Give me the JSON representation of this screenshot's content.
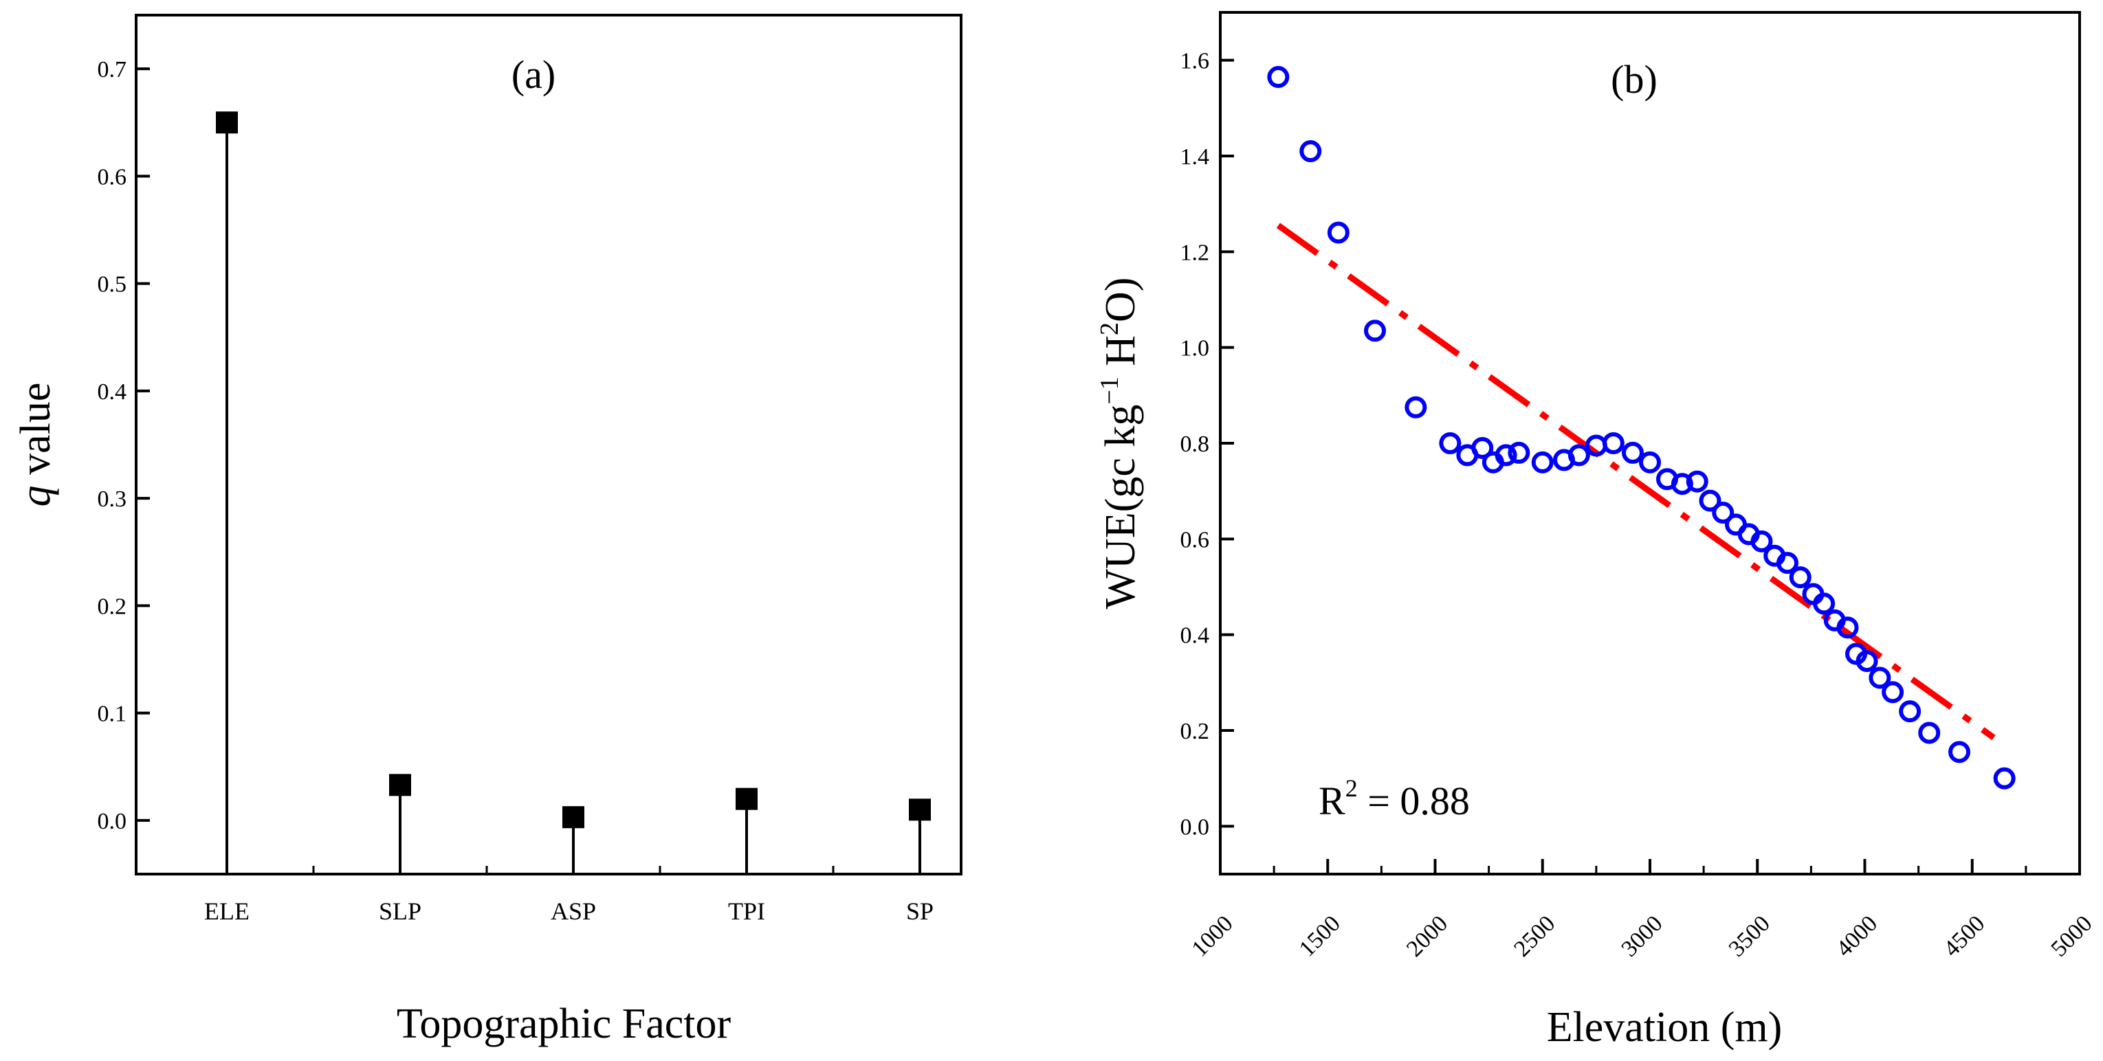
{
  "colors": {
    "marker_a": "#000000",
    "marker_b": "#0000ff",
    "fit_line": "#ff0000",
    "axis": "#000000",
    "background": "#ffffff"
  },
  "chart_data": [
    {
      "type": "stem",
      "panel_label": "(a)",
      "categories": [
        "ELE",
        "SLP",
        "ASP",
        "TPI",
        "SP"
      ],
      "values": [
        0.65,
        0.033,
        0.003,
        0.02,
        0.01
      ],
      "xlabel": "Topographic Factor",
      "ylabel_italic": "q",
      "ylabel_rest": " value",
      "ylim": [
        -0.05,
        0.75
      ],
      "yticks": [
        0.0,
        0.1,
        0.2,
        0.3,
        0.4,
        0.5,
        0.6,
        0.7
      ],
      "ytick_labels": [
        "0.0",
        "0.1",
        "0.2",
        "0.3",
        "0.4",
        "0.5",
        "0.6",
        "0.7"
      ],
      "marker": "square",
      "grid": false
    },
    {
      "type": "scatter",
      "panel_label": "(b)",
      "x": [
        1270,
        1420,
        1550,
        1720,
        1910,
        2070,
        2150,
        2220,
        2270,
        2330,
        2390,
        2500,
        2600,
        2670,
        2750,
        2830,
        2920,
        3000,
        3080,
        3150,
        3220,
        3280,
        3340,
        3400,
        3460,
        3520,
        3580,
        3640,
        3700,
        3760,
        3810,
        3860,
        3920,
        3960,
        4010,
        4070,
        4130,
        4210,
        4300,
        4440,
        4650
      ],
      "y": [
        1.565,
        1.41,
        1.24,
        1.035,
        0.875,
        0.8,
        0.775,
        0.79,
        0.76,
        0.775,
        0.78,
        0.76,
        0.765,
        0.775,
        0.795,
        0.8,
        0.78,
        0.76,
        0.725,
        0.715,
        0.72,
        0.68,
        0.655,
        0.63,
        0.61,
        0.595,
        0.565,
        0.55,
        0.52,
        0.485,
        0.465,
        0.43,
        0.415,
        0.36,
        0.345,
        0.31,
        0.28,
        0.24,
        0.195,
        0.155,
        0.1
      ],
      "marker": "open-circle",
      "fit": {
        "style": "dash-dot",
        "x": [
          1270,
          4600
        ],
        "y": [
          1.255,
          0.185
        ]
      },
      "annotation": {
        "text_base": "R",
        "text_sup": "2",
        "text_rest": " = 0.88"
      },
      "xlabel": "Elevation (m)",
      "ylabel_main": "WUE(gc kg",
      "ylabel_sup1": "−1",
      "ylabel_mid": " H",
      "ylabel_sup2": "2",
      "ylabel_end": "O)",
      "xlim": [
        1000,
        5000
      ],
      "ylim": [
        -0.1,
        1.7
      ],
      "xticks": [
        1000,
        1500,
        2000,
        2500,
        3000,
        3500,
        4000,
        4500,
        5000
      ],
      "xtick_labels": [
        "1000",
        "1500",
        "2000",
        "2500",
        "3000",
        "3500",
        "4000",
        "4500",
        "5000"
      ],
      "yticks": [
        0.0,
        0.2,
        0.4,
        0.6,
        0.8,
        1.0,
        1.2,
        1.4,
        1.6
      ],
      "ytick_labels": [
        "0.0",
        "0.2",
        "0.4",
        "0.6",
        "0.8",
        "1.0",
        "1.2",
        "1.4",
        "1.6"
      ],
      "grid": false
    }
  ]
}
